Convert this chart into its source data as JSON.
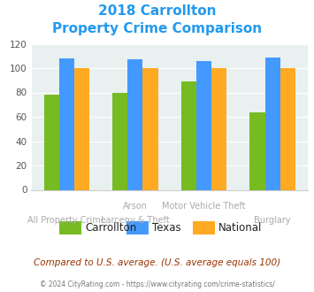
{
  "title_line1": "2018 Carrollton",
  "title_line2": "Property Crime Comparison",
  "cat_labels_top": [
    "",
    "Arson",
    "Motor Vehicle Theft",
    ""
  ],
  "cat_labels_bot": [
    "All Property Crime",
    "Larceny & Theft",
    "",
    "Burglary"
  ],
  "carrollton": [
    78,
    80,
    89,
    64
  ],
  "texas": [
    108,
    107,
    106,
    109
  ],
  "national": [
    100,
    100,
    100,
    100
  ],
  "carrollton_color": "#77bb22",
  "texas_color": "#4499ff",
  "national_color": "#ffaa22",
  "ylim": [
    0,
    120
  ],
  "yticks": [
    0,
    20,
    40,
    60,
    80,
    100,
    120
  ],
  "bg_color": "#e8f0f0",
  "footer_text": "Compared to U.S. average. (U.S. average equals 100)",
  "copyright_text": "© 2024 CityRating.com - https://www.cityrating.com/crime-statistics/",
  "title_color": "#2299ee",
  "footer_color": "#993300",
  "copyright_color": "#777777",
  "tick_color": "#aaaaaa",
  "legend_labels": [
    "Carrollton",
    "Texas",
    "National"
  ]
}
